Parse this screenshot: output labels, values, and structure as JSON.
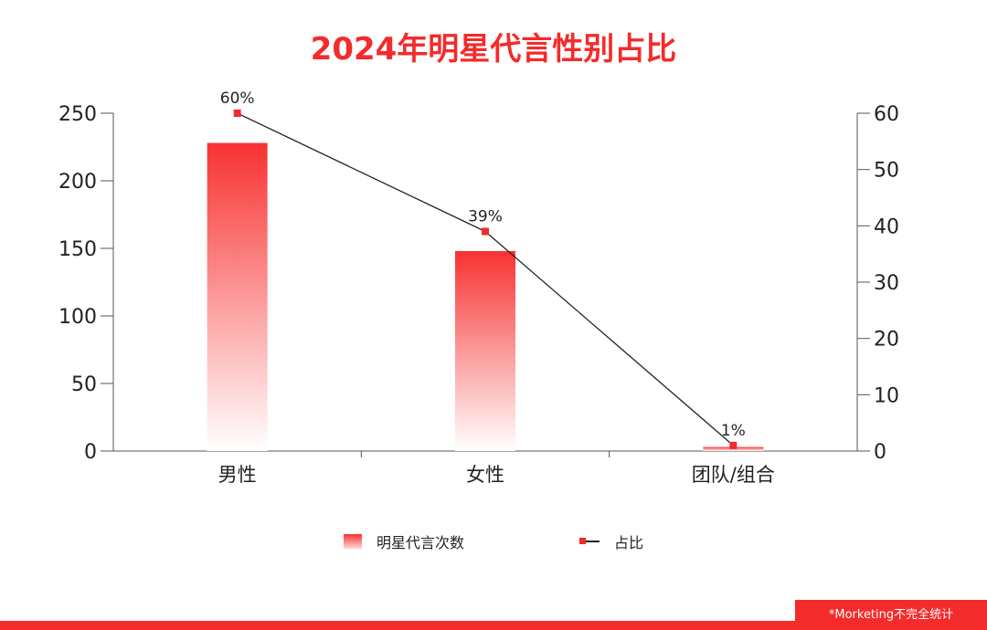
{
  "theme": {
    "accent": "#f42b2b",
    "bar_top": "#f83232",
    "bar_bottom": "#ffffff",
    "line": "#222222",
    "marker": "#ef2b2b"
  },
  "chart_data": {
    "type": "bar",
    "title": "2024年明星代言性别占比",
    "categories": [
      "男性",
      "女性",
      "团队/组合"
    ],
    "series": [
      {
        "name": "明星代言次数",
        "type": "bar",
        "axis": "left",
        "values": [
          228,
          148,
          3
        ]
      },
      {
        "name": "占比",
        "type": "line",
        "axis": "right",
        "values": [
          60,
          39,
          1
        ],
        "labels": [
          "60%",
          "39%",
          "1%"
        ]
      }
    ],
    "y_left": {
      "min": 0,
      "max": 250,
      "ticks": [
        0,
        50,
        100,
        150,
        200,
        250
      ]
    },
    "y_right": {
      "min": 0,
      "max": 60,
      "ticks": [
        0,
        10,
        20,
        30,
        40,
        50,
        60
      ]
    },
    "grid": false,
    "legend": "bottom-center"
  },
  "footer": {
    "note": "*Morketing不完全统计"
  }
}
